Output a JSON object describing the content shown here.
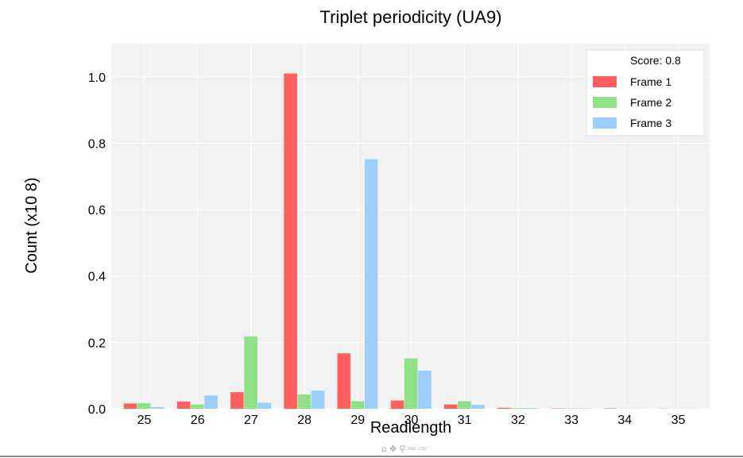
{
  "chart_data": {
    "type": "bar",
    "title": "Triplet periodicity (UA9)",
    "xlabel": "Readlength",
    "ylabel": "Count (x10 8)",
    "categories": [
      "25",
      "26",
      "27",
      "28",
      "29",
      "30",
      "31",
      "32",
      "33",
      "34",
      "35"
    ],
    "series": [
      {
        "name": "Frame 1",
        "color": "#ff5f5f",
        "values": [
          0.016,
          0.022,
          0.05,
          1.01,
          0.167,
          0.025,
          0.013,
          0.003,
          0.001,
          0.001,
          0.0005
        ]
      },
      {
        "name": "Frame 2",
        "color": "#90e088",
        "values": [
          0.017,
          0.013,
          0.218,
          0.043,
          0.023,
          0.152,
          0.023,
          0.002,
          0.001,
          0.0005,
          0.0005
        ]
      },
      {
        "name": "Frame 3",
        "color": "#9ccdfb",
        "values": [
          0.005,
          0.04,
          0.018,
          0.055,
          0.752,
          0.115,
          0.012,
          0.002,
          0.001,
          0.0005,
          0.0005
        ]
      }
    ],
    "yticks": [
      "0.0",
      "0.2",
      "0.4",
      "0.6",
      "0.8",
      "1.0"
    ],
    "ylim": [
      0,
      1.1
    ],
    "grid": true,
    "background": "#f2f2f2",
    "legend": {
      "position": "top-right",
      "header": "Score: 0.8"
    }
  },
  "toolbar": {
    "home_icon": "home-icon",
    "pan_icon": "pan-icon",
    "zoom_icon": "zoom-icon",
    "png": "PNG",
    "csv": "CSV"
  }
}
